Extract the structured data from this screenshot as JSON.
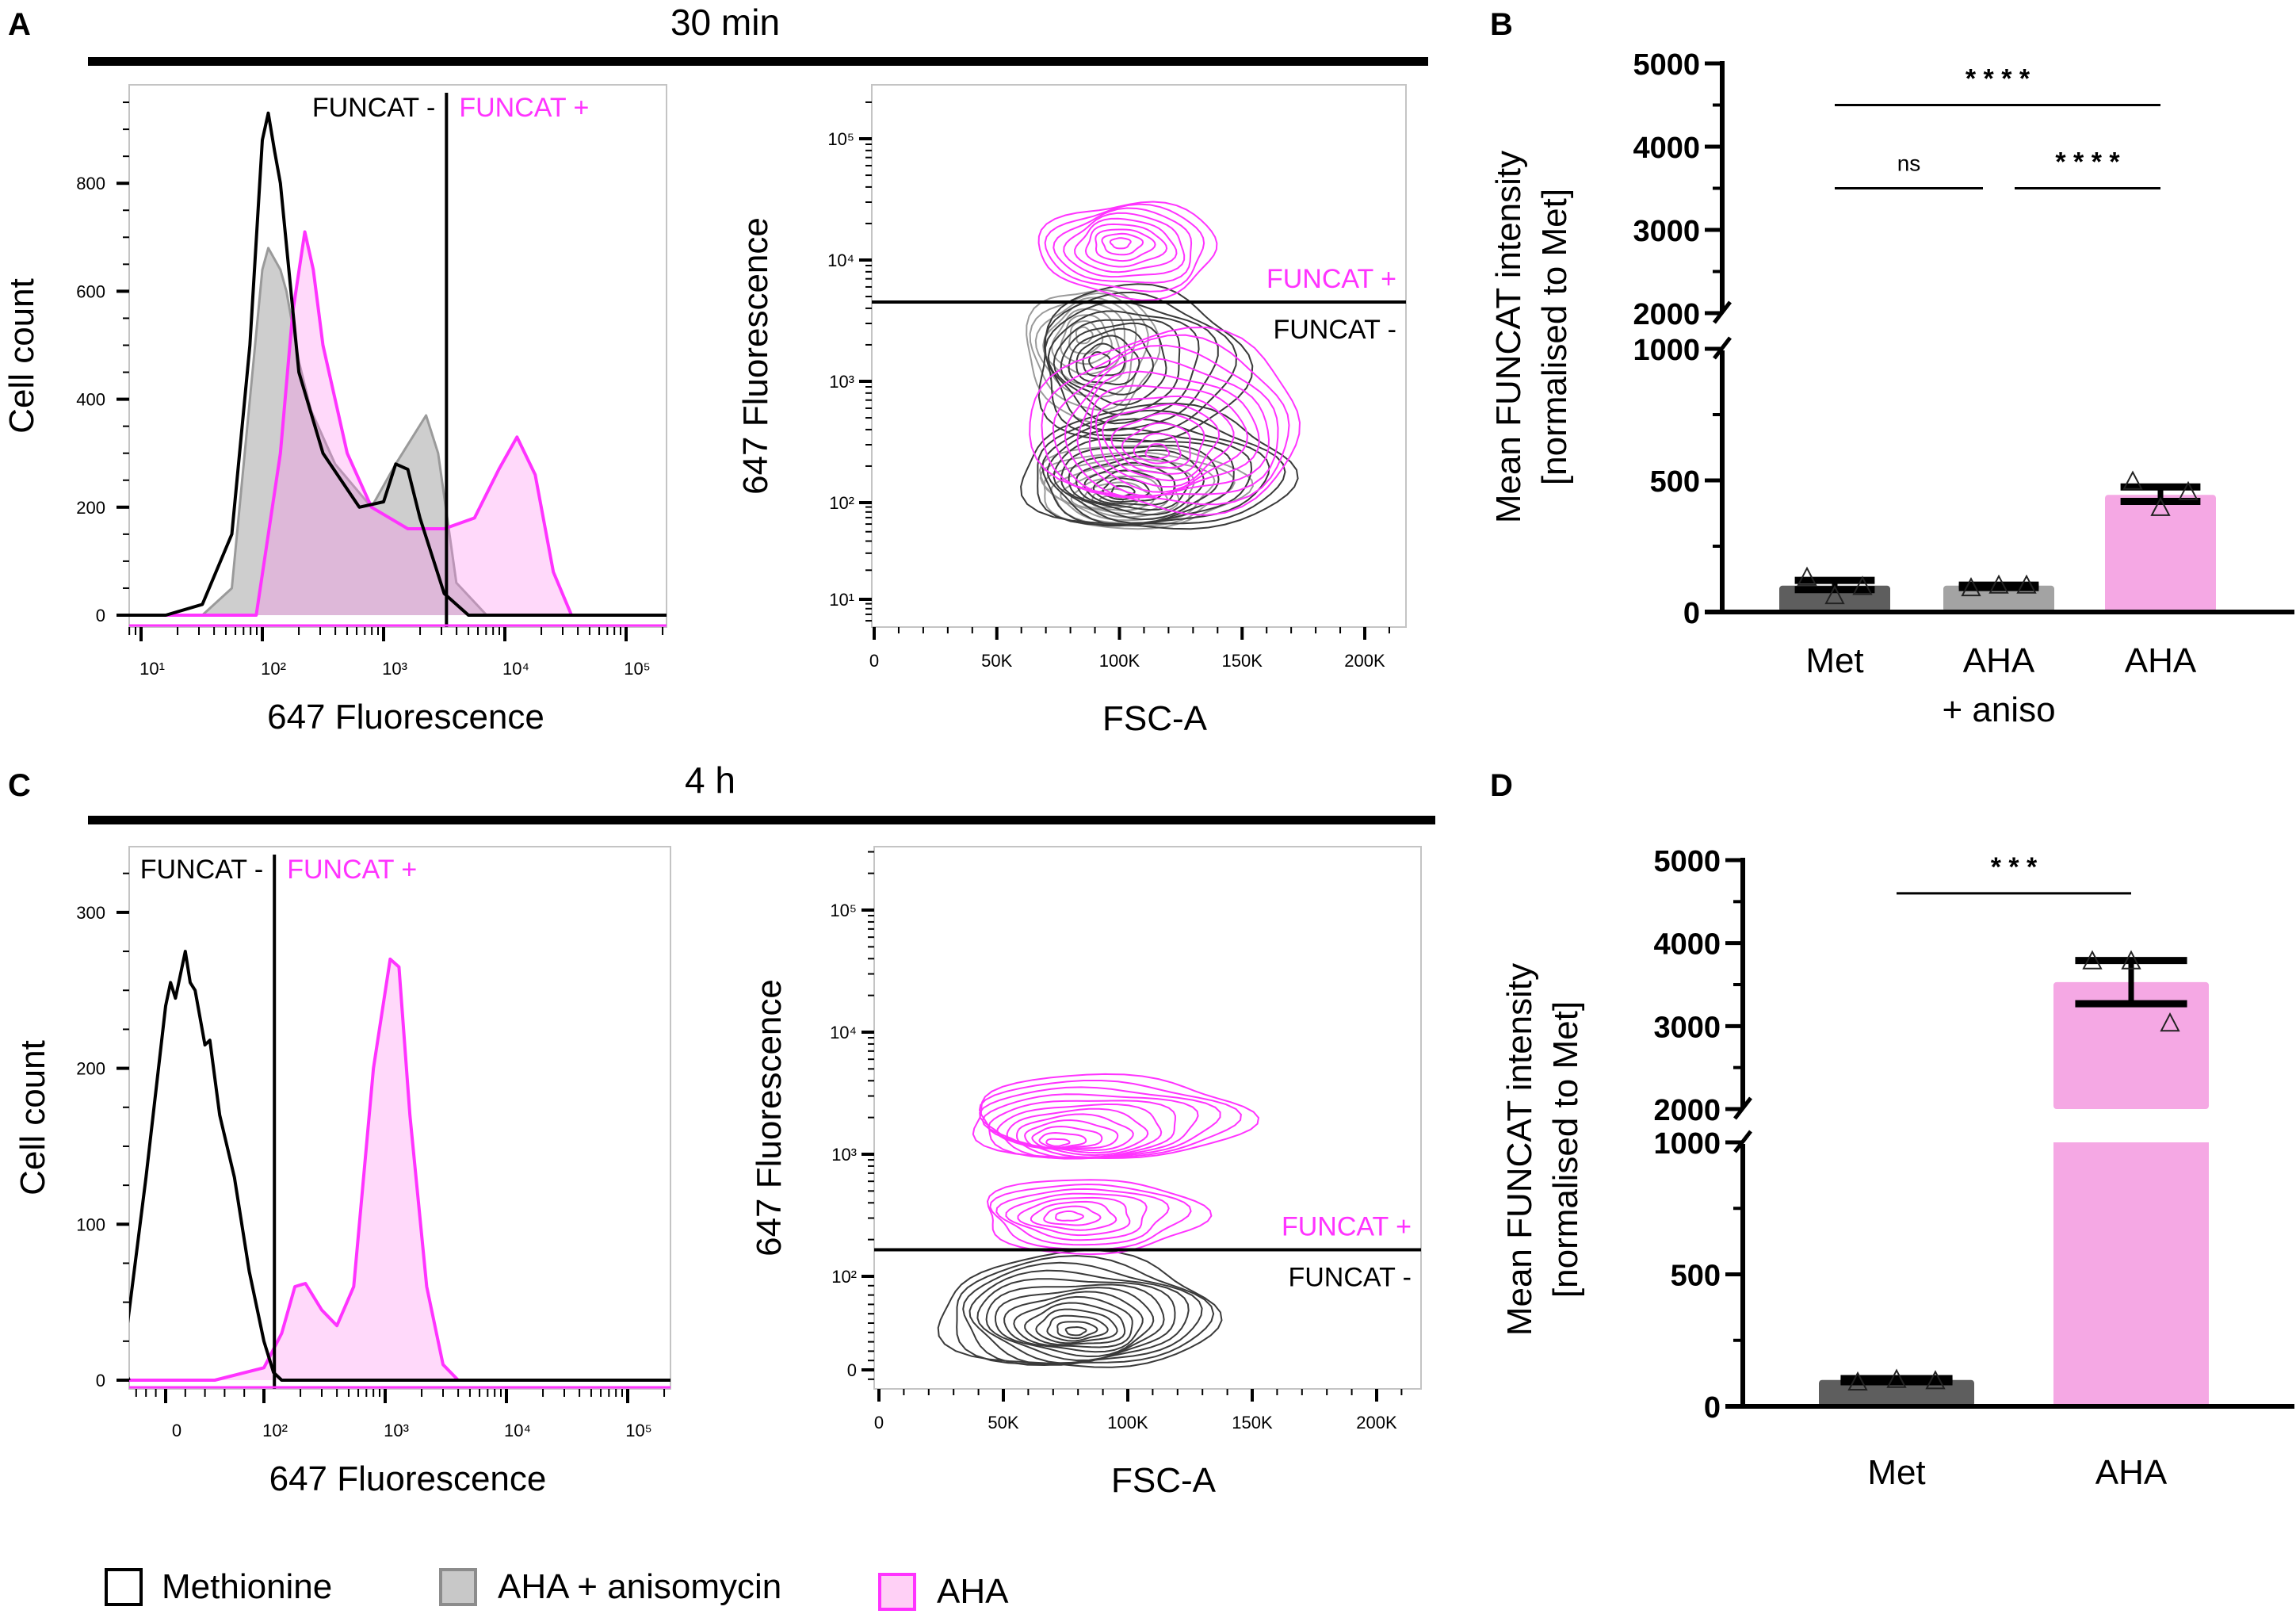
{
  "panels": {
    "A": "A",
    "B": "B",
    "C": "C",
    "D": "D"
  },
  "section_titles": {
    "top": "30 min",
    "bottom": "4 h"
  },
  "legend": [
    {
      "label": "Methionine",
      "stroke": "#000000",
      "fill": "#ffffff"
    },
    {
      "label": "AHA + anisomycin",
      "stroke": "#8c8c8c",
      "fill": "#c8c8c8"
    },
    {
      "label": "AHA",
      "stroke": "#ff33ff",
      "fill": "#ffd0f6"
    }
  ],
  "colors": {
    "methionine": "#000000",
    "aha_aniso": "#8c8c8c",
    "aha": "#ff33ff",
    "bar_met": "#5e5e5e",
    "bar_aniso": "#a3a3a3",
    "bar_aha": "#f5a8e4"
  },
  "chart_data": [
    {
      "panel": "A",
      "type": "area",
      "title": "",
      "xlabel": "647 Fluorescence",
      "ylabel": "Cell count",
      "xscale": "log",
      "xlim": [
        8,
        220000
      ],
      "ylim": [
        0,
        980
      ],
      "yticks": [
        {
          "value": 0,
          "label": "0"
        },
        {
          "value": 200,
          "label": "200"
        },
        {
          "value": 400,
          "label": "400"
        },
        {
          "value": 600,
          "label": "600"
        },
        {
          "value": 800,
          "label": "800"
        }
      ],
      "xticks": [
        {
          "value": 10,
          "label": "10¹"
        },
        {
          "value": 100,
          "label": "10²"
        },
        {
          "value": 1000,
          "label": "10³"
        },
        {
          "value": 10000,
          "label": "10⁴"
        },
        {
          "value": 100000,
          "label": "10⁵"
        }
      ],
      "gate": {
        "x": 3300,
        "neg_label": "FUNCAT -",
        "pos_label": "FUNCAT +"
      },
      "series": [
        {
          "name": "AHA + anisomycin",
          "style": "fill",
          "points": [
            [
              32,
              0
            ],
            [
              56,
              50
            ],
            [
              79,
              400
            ],
            [
              100,
              640
            ],
            [
              112,
              680
            ],
            [
              141,
              640
            ],
            [
              158,
              600
            ],
            [
              200,
              470
            ],
            [
              251,
              380
            ],
            [
              398,
              280
            ],
            [
              794,
              200
            ],
            [
              1259,
              280
            ],
            [
              2239,
              370
            ],
            [
              2818,
              300
            ],
            [
              3981,
              60
            ],
            [
              7079,
              0
            ]
          ]
        },
        {
          "name": "AHA",
          "style": "fill",
          "points": [
            [
              89,
              0
            ],
            [
              141,
              300
            ],
            [
              178,
              560
            ],
            [
              224,
              710
            ],
            [
              263,
              640
            ],
            [
              316,
              500
            ],
            [
              501,
              300
            ],
            [
              794,
              200
            ],
            [
              1585,
              160
            ],
            [
              3162,
              160
            ],
            [
              5623,
              180
            ],
            [
              8913,
              270
            ],
            [
              12589,
              330
            ],
            [
              17783,
              260
            ],
            [
              25119,
              80
            ],
            [
              35481,
              0
            ]
          ]
        },
        {
          "name": "Methionine",
          "style": "line",
          "points": [
            [
              16,
              0
            ],
            [
              32,
              20
            ],
            [
              56,
              150
            ],
            [
              79,
              500
            ],
            [
              100,
              880
            ],
            [
              112,
              930
            ],
            [
              126,
              860
            ],
            [
              141,
              800
            ],
            [
              200,
              450
            ],
            [
              316,
              300
            ],
            [
              631,
              200
            ],
            [
              1000,
              210
            ],
            [
              1259,
              280
            ],
            [
              1585,
              270
            ],
            [
              1995,
              180
            ],
            [
              3162,
              40
            ],
            [
              5012,
              0
            ]
          ]
        }
      ]
    },
    {
      "panel": "A",
      "type": "contour",
      "title": "",
      "xlabel": "FSC-A",
      "ylabel": "647 Fluorescence",
      "xlim": [
        0,
        218
      ],
      "yscale": "log",
      "ylim": [
        6,
        300000
      ],
      "xticks": [
        {
          "value": 0,
          "label": "0"
        },
        {
          "value": 50,
          "label": "50K"
        },
        {
          "value": 100,
          "label": "100K"
        },
        {
          "value": 150,
          "label": "150K"
        },
        {
          "value": 200,
          "label": "200K"
        }
      ],
      "yticks": [
        {
          "value": 10,
          "label": "10¹"
        },
        {
          "value": 100,
          "label": "10²"
        },
        {
          "value": 1000,
          "label": "10³"
        },
        {
          "value": 10000,
          "label": "10⁴"
        },
        {
          "value": 100000,
          "label": "10⁵"
        }
      ],
      "gate": {
        "y": 4500,
        "neg_label": "FUNCAT -",
        "pos_label": "FUNCAT +"
      },
      "populations": [
        {
          "series": "Methionine",
          "center": [
            100,
            120
          ],
          "x_extent": [
            60,
            170
          ],
          "y_extent": [
            50,
            600
          ],
          "levels": 12
        },
        {
          "series": "Methionine",
          "center": [
            90,
            1500
          ],
          "x_extent": [
            65,
            150
          ],
          "y_extent": [
            300,
            6000
          ],
          "levels": 10
        },
        {
          "series": "AHA + anisomycin",
          "center": [
            95,
            100
          ],
          "x_extent": [
            65,
            150
          ],
          "y_extent": [
            55,
            300
          ],
          "levels": 9
        },
        {
          "series": "AHA + anisomycin",
          "center": [
            85,
            2500
          ],
          "x_extent": [
            62,
            115
          ],
          "y_extent": [
            500,
            6000
          ],
          "levels": 8
        },
        {
          "series": "AHA",
          "center": [
            100,
            14000
          ],
          "x_extent": [
            68,
            140
          ],
          "y_extent": [
            5000,
            30000
          ],
          "levels": 9
        },
        {
          "series": "AHA",
          "center": [
            115,
            250
          ],
          "x_extent": [
            65,
            175
          ],
          "y_extent": [
            80,
            2500
          ],
          "levels": 12
        }
      ]
    },
    {
      "panel": "B",
      "type": "bar",
      "title": "",
      "ylabel": [
        "Mean FUNCAT intensity",
        "[normalised to Met]"
      ],
      "categories": [
        [
          "Met"
        ],
        [
          "AHA",
          "+ aniso"
        ],
        [
          "AHA"
        ]
      ],
      "values": [
        100,
        100,
        445
      ],
      "error": [
        [
          85,
          120
        ],
        [
          93,
          102
        ],
        [
          420,
          475
        ]
      ],
      "points": [
        [
          130,
          60,
          95
        ],
        [
          90,
          100,
          100
        ],
        [
          495,
          395,
          455
        ]
      ],
      "bar_colors": [
        "#5e5e5e",
        "#a3a3a3",
        "#f5a8e4"
      ],
      "ylim": [
        0,
        5000
      ],
      "axis_break": [
        1000,
        2000
      ],
      "yticks": [
        {
          "value": 0,
          "label": "0"
        },
        {
          "value": 500,
          "label": "500"
        },
        {
          "value": 1000,
          "label": "1000"
        },
        {
          "value": 2000,
          "label": "2000"
        },
        {
          "value": 3000,
          "label": "3000"
        },
        {
          "value": 4000,
          "label": "4000"
        },
        {
          "value": 5000,
          "label": "5000"
        }
      ],
      "minor_yticks": [
        250,
        750,
        2500,
        3500,
        4500
      ],
      "significance": [
        {
          "from": 0,
          "to": 2,
          "y": 4500,
          "label": "* * * *"
        },
        {
          "from": 0,
          "to": 1,
          "y": 3500,
          "label": "ns"
        },
        {
          "from": 1,
          "to": 2,
          "y": 3500,
          "label": "* * * *"
        }
      ]
    },
    {
      "panel": "C",
      "type": "area",
      "title": "",
      "xlabel": "647 Fluorescence",
      "ylabel": "Cell count",
      "xscale": "biexponential",
      "xlim": [
        -45,
        220000
      ],
      "ylim": [
        0,
        330
      ],
      "yticks": [
        {
          "value": 0,
          "label": "0"
        },
        {
          "value": 100,
          "label": "100"
        },
        {
          "value": 200,
          "label": "200"
        },
        {
          "value": 300,
          "label": "300"
        }
      ],
      "xticks": [
        {
          "value": 0,
          "label": "0"
        },
        {
          "value": 100,
          "label": "10²"
        },
        {
          "value": 1000,
          "label": "10³"
        },
        {
          "value": 10000,
          "label": "10⁴"
        },
        {
          "value": 100000,
          "label": "10⁵"
        }
      ],
      "gate": {
        "x": 122,
        "neg_label": "FUNCAT -",
        "pos_label": "FUNCAT +"
      },
      "series": [
        {
          "name": "AHA",
          "style": "fill",
          "points": [
            [
              50,
              0
            ],
            [
              100,
              8
            ],
            [
              140,
              30
            ],
            [
              180,
              60
            ],
            [
              220,
              62
            ],
            [
              300,
              45
            ],
            [
              400,
              35
            ],
            [
              550,
              60
            ],
            [
              800,
              200
            ],
            [
              1100,
              270
            ],
            [
              1300,
              265
            ],
            [
              1600,
              170
            ],
            [
              2200,
              60
            ],
            [
              3000,
              10
            ],
            [
              4000,
              0
            ]
          ]
        },
        {
          "name": "Methionine",
          "style": "line",
          "points": [
            [
              -45,
              10
            ],
            [
              -40,
              30
            ],
            [
              -20,
              130
            ],
            [
              0,
              240
            ],
            [
              5,
              255
            ],
            [
              10,
              245
            ],
            [
              20,
              275
            ],
            [
              25,
              255
            ],
            [
              30,
              250
            ],
            [
              40,
              215
            ],
            [
              45,
              218
            ],
            [
              55,
              170
            ],
            [
              70,
              130
            ],
            [
              85,
              70
            ],
            [
              100,
              25
            ],
            [
              120,
              5
            ],
            [
              140,
              0
            ]
          ]
        }
      ]
    },
    {
      "panel": "C",
      "type": "contour",
      "title": "",
      "xlabel": "FSC-A",
      "ylabel": "647 Fluorescence",
      "xlim": [
        0,
        218
      ],
      "yscale": "biexponential",
      "ylim": [
        -10,
        300000
      ],
      "xticks": [
        {
          "value": 0,
          "label": "0"
        },
        {
          "value": 50,
          "label": "50K"
        },
        {
          "value": 100,
          "label": "100K"
        },
        {
          "value": 150,
          "label": "150K"
        },
        {
          "value": 200,
          "label": "200K"
        }
      ],
      "yticks": [
        {
          "value": 0,
          "label": "0"
        },
        {
          "value": 100,
          "label": "10²"
        },
        {
          "value": 1000,
          "label": "10³"
        },
        {
          "value": 10000,
          "label": "10⁴"
        },
        {
          "value": 100000,
          "label": "10⁵"
        }
      ],
      "gate": {
        "y": 165,
        "neg_label": "FUNCAT -",
        "pos_label": "FUNCAT +"
      },
      "populations": [
        {
          "series": "Methionine",
          "center": [
            79,
            40
          ],
          "x_extent": [
            24,
            135
          ],
          "y_extent": [
            0,
            150
          ],
          "levels": 14
        },
        {
          "series": "AHA",
          "center": [
            70,
            1200
          ],
          "x_extent": [
            35,
            147
          ],
          "y_extent": [
            900,
            4400
          ],
          "levels": 12
        },
        {
          "series": "AHA",
          "center": [
            75,
            310
          ],
          "x_extent": [
            41,
            129
          ],
          "y_extent": [
            155,
            630
          ],
          "levels": 8
        }
      ]
    },
    {
      "panel": "D",
      "type": "bar",
      "title": "",
      "ylabel": [
        "Mean FUNCAT intensity",
        "[normalised to Met]"
      ],
      "categories": [
        [
          "Met"
        ],
        [
          "AHA"
        ]
      ],
      "values": [
        100,
        3530
      ],
      "error": [
        [
          93,
          105
        ],
        [
          3270,
          3790
        ]
      ],
      "points": [
        [
          90,
          100,
          95
        ],
        [
          3780,
          3780,
          3030
        ]
      ],
      "bar_colors": [
        "#5e5e5e",
        "#f5a8e4"
      ],
      "ylim": [
        0,
        5000
      ],
      "axis_break": [
        1000,
        2000
      ],
      "yticks": [
        {
          "value": 0,
          "label": "0"
        },
        {
          "value": 500,
          "label": "500"
        },
        {
          "value": 1000,
          "label": "1000"
        },
        {
          "value": 2000,
          "label": "2000"
        },
        {
          "value": 3000,
          "label": "3000"
        },
        {
          "value": 4000,
          "label": "4000"
        },
        {
          "value": 5000,
          "label": "5000"
        }
      ],
      "minor_yticks": [
        250,
        750,
        2500,
        3500,
        4500
      ],
      "significance": [
        {
          "from": 0,
          "to": 1,
          "y": 4600,
          "label": "* * *"
        }
      ]
    }
  ]
}
